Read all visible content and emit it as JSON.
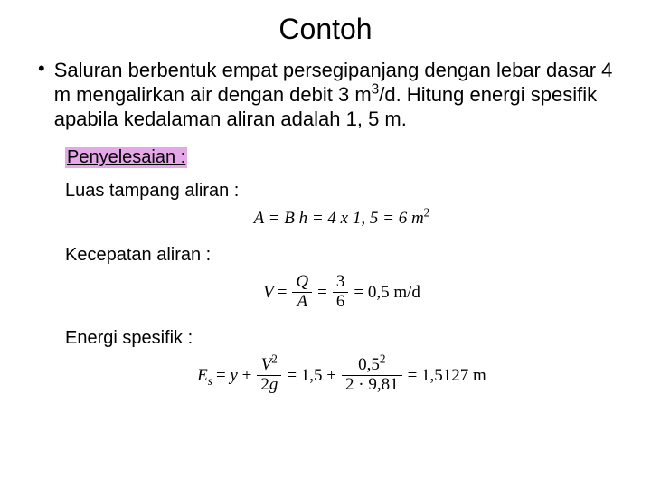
{
  "title": "Contoh",
  "bullet": {
    "text_before_sup": "Saluran berbentuk empat persegipanjang dengan lebar dasar 4 m mengalirkan air dengan debit 3 m",
    "sup": "3",
    "text_after_sup": "/d. Hitung energi spesifik apabila kedalaman aliran adalah 1, 5 m."
  },
  "solution_label": "Penyelesaian :",
  "area": {
    "label": "Luas tampang aliran :",
    "formula_before_sup": "A = B h = 4 x 1, 5 = 6 m",
    "sup": "2"
  },
  "velocity": {
    "label": "Kecepatan aliran :",
    "V": "V",
    "eq1": "=",
    "Q": "Q",
    "A": "A",
    "num2": "3",
    "den2": "6",
    "result": "= 0,5 m/d"
  },
  "energy": {
    "label": "Energi spesifik :",
    "Es": "E",
    "sub_s": "s",
    "y": "= y +",
    "Vnum": "V",
    "sq": "2",
    "den2g": "2g",
    "mid": "= 1,5 +",
    "num2": "0,5",
    "den2": "2 · 9,81",
    "result": "= 1,5127 m"
  },
  "colors": {
    "highlight_bg": "#e4a8e8",
    "text": "#000000",
    "background": "#ffffff"
  }
}
